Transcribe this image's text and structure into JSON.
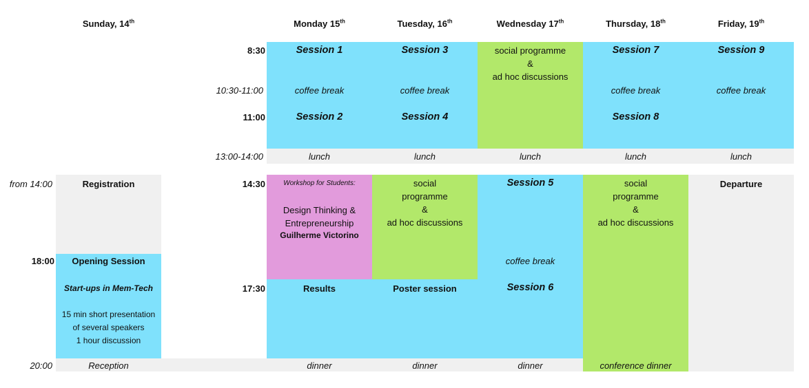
{
  "colors": {
    "session_blue": "#7fe1fc",
    "social_green": "#b2e86a",
    "workshop_pink": "#e29bdc",
    "break_grey": "#f0f0f0"
  },
  "headers": {
    "sunday": {
      "day": "Sunday, 14",
      "sup": "th"
    },
    "monday": {
      "day": "Monday 15",
      "sup": "th"
    },
    "tuesday": {
      "day": "Tuesday, 16",
      "sup": "th"
    },
    "wednesday": {
      "day": "Wednesday 17",
      "sup": "th"
    },
    "thursday": {
      "day": "Thursday, 18",
      "sup": "th"
    },
    "friday": {
      "day": "Friday, 19",
      "sup": "th"
    }
  },
  "times": {
    "t0830": "8:30",
    "t1030": "10:30-11:00",
    "t1100": "11:00",
    "t1300": "13:00-14:00",
    "from14": "from 14:00",
    "t1430": "14:30",
    "t1800": "18:00",
    "t1730": "17:30",
    "t2000": "20:00"
  },
  "sunday": {
    "registration": "Registration",
    "opening_title": "Opening Session",
    "opening_sub": "Start-ups in Mem-Tech",
    "opening_lines": [
      "15 min short presentation",
      "of several speakers",
      "1 hour discussion"
    ],
    "reception": "Reception"
  },
  "monday": {
    "session1": "Session 1",
    "coffee": "coffee break",
    "session2": "Session 2",
    "lunch": "lunch",
    "workshop_tag": "Workshop for Students:",
    "workshop_lines": [
      "Design Thinking &",
      "Entrepreneurship"
    ],
    "workshop_speaker": "Guilherme Victorino",
    "results": "Results",
    "dinner": "dinner"
  },
  "tuesday": {
    "session3": "Session 3",
    "coffee": "coffee break",
    "session4": "Session 4",
    "lunch": "lunch",
    "social_lines": [
      "social",
      "programme",
      "&",
      "ad hoc discussions"
    ],
    "poster": "Poster session",
    "dinner": "dinner"
  },
  "wednesday": {
    "social_lines": [
      "social programme",
      "&",
      "ad hoc discussions"
    ],
    "lunch": "lunch",
    "session5": "Session 5",
    "coffee": "coffee break",
    "session6": "Session 6",
    "dinner": "dinner"
  },
  "thursday": {
    "session7": "Session 7",
    "coffee": "coffee break",
    "session8": "Session 8",
    "lunch": "lunch",
    "social_lines": [
      "social",
      "programme",
      "&",
      "ad hoc discussions"
    ],
    "conference_dinner": "conference dinner"
  },
  "friday": {
    "session9": "Session 9",
    "coffee": "coffee break",
    "lunch": "lunch",
    "departure": "Departure"
  }
}
